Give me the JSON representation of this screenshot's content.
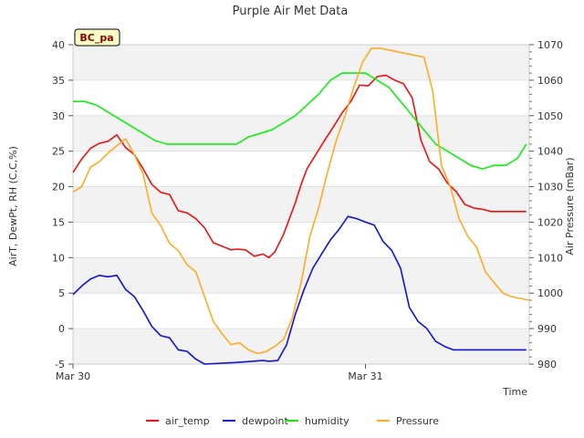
{
  "chart_data": {
    "type": "line",
    "title": "Purple Air Met Data",
    "badge": "BC_pa",
    "xlabel": "Time",
    "ylabel_left": "AirT, DewPt, RH (C,C,%)",
    "ylabel_right": "Air Pressure (mBar)",
    "x_ticks": [
      {
        "x": 0,
        "label": "Mar 30"
      },
      {
        "x": 1,
        "label": "Mar 31"
      }
    ],
    "xlim": [
      0,
      1.56
    ],
    "ylim_left": [
      -5,
      40
    ],
    "ylim_right": [
      980,
      1070
    ],
    "y_ticks_left": [
      -5,
      0,
      5,
      10,
      15,
      20,
      25,
      30,
      35,
      40
    ],
    "y_ticks_right": [
      980,
      990,
      1000,
      1010,
      1020,
      1030,
      1040,
      1050,
      1060,
      1070
    ],
    "grid": true,
    "legend_position": "bottom",
    "series": [
      {
        "name": "air_temp",
        "axis": "left",
        "color": "#ee1111",
        "x": [
          0,
          0.03,
          0.06,
          0.09,
          0.12,
          0.15,
          0.18,
          0.21,
          0.24,
          0.27,
          0.3,
          0.33,
          0.36,
          0.39,
          0.42,
          0.45,
          0.48,
          0.51,
          0.54,
          0.56,
          0.59,
          0.62,
          0.65,
          0.67,
          0.69,
          0.72,
          0.74,
          0.76,
          0.78,
          0.8,
          0.83,
          0.86,
          0.89,
          0.92,
          0.95,
          0.98,
          1.01,
          1.04,
          1.07,
          1.1,
          1.13,
          1.16,
          1.19,
          1.22,
          1.25,
          1.28,
          1.31,
          1.34,
          1.37,
          1.4,
          1.43,
          1.46,
          1.49,
          1.52,
          1.55
        ],
        "values": [
          22.0,
          23.9,
          25.4,
          26.1,
          26.4,
          27.3,
          25.5,
          24.5,
          22.5,
          20.3,
          19.2,
          18.9,
          16.6,
          16.3,
          15.5,
          14.2,
          12.1,
          11.6,
          11.1,
          11.2,
          11.1,
          10.2,
          10.5,
          10.0,
          10.8,
          13.3,
          15.5,
          17.7,
          20.3,
          22.5,
          24.5,
          26.5,
          28.4,
          30.4,
          32.0,
          34.3,
          34.2,
          35.5,
          35.7,
          35.0,
          34.5,
          32.5,
          26.5,
          23.5,
          22.5,
          20.5,
          19.3,
          17.5,
          17.0,
          16.8,
          16.5,
          16.5,
          16.5,
          16.5,
          16.5
        ]
      },
      {
        "name": "dewpoint",
        "axis": "left",
        "color": "#1111dd",
        "x": [
          0,
          0.03,
          0.06,
          0.09,
          0.12,
          0.15,
          0.18,
          0.21,
          0.24,
          0.27,
          0.3,
          0.33,
          0.36,
          0.39,
          0.42,
          0.45,
          0.55,
          0.65,
          0.67,
          0.7,
          0.73,
          0.76,
          0.79,
          0.82,
          0.85,
          0.88,
          0.91,
          0.94,
          0.97,
          1.0,
          1.03,
          1.06,
          1.09,
          1.12,
          1.15,
          1.18,
          1.21,
          1.24,
          1.27,
          1.3,
          1.33,
          1.36,
          1.39,
          1.42,
          1.45,
          1.48,
          1.51,
          1.55
        ],
        "values": [
          4.8,
          6.0,
          7.0,
          7.5,
          7.3,
          7.5,
          5.5,
          4.5,
          2.5,
          0.3,
          -1.0,
          -1.3,
          -3.0,
          -3.2,
          -4.3,
          -5.0,
          -4.8,
          -4.5,
          -4.6,
          -4.5,
          -2.3,
          2.0,
          5.5,
          8.5,
          10.5,
          12.5,
          14.0,
          15.8,
          15.5,
          15.0,
          14.6,
          12.3,
          11.0,
          8.5,
          3.0,
          1.0,
          0.0,
          -1.8,
          -2.5,
          -3.0,
          -3.0,
          -3.0,
          -3.0,
          -3.0,
          -3.0,
          -3.0,
          -3.0,
          -3.0
        ]
      },
      {
        "name": "humidity",
        "axis": "left",
        "color": "#11ee11",
        "x": [
          0,
          0.04,
          0.08,
          0.12,
          0.16,
          0.2,
          0.24,
          0.28,
          0.32,
          0.36,
          0.4,
          0.44,
          0.48,
          0.52,
          0.56,
          0.6,
          0.64,
          0.68,
          0.72,
          0.76,
          0.8,
          0.84,
          0.88,
          0.92,
          0.96,
          1.0,
          1.04,
          1.08,
          1.12,
          1.16,
          1.2,
          1.24,
          1.28,
          1.32,
          1.36,
          1.4,
          1.44,
          1.48,
          1.52,
          1.55
        ],
        "values": [
          32.0,
          32.0,
          31.5,
          30.5,
          29.5,
          28.5,
          27.5,
          26.5,
          26.0,
          26.0,
          26.0,
          26.0,
          26.0,
          26.0,
          26.0,
          27.0,
          27.5,
          28.0,
          29.0,
          30.0,
          31.5,
          33.0,
          35.0,
          36.0,
          36.0,
          36.0,
          35.0,
          34.0,
          32.0,
          30.0,
          28.0,
          26.0,
          25.0,
          24.0,
          23.0,
          22.5,
          23.0,
          23.0,
          24.0,
          26.0
        ]
      },
      {
        "name": "Pressure",
        "axis": "right",
        "color": "#ffaa22",
        "x": [
          0,
          0.03,
          0.06,
          0.09,
          0.12,
          0.15,
          0.18,
          0.21,
          0.24,
          0.27,
          0.3,
          0.33,
          0.36,
          0.39,
          0.42,
          0.45,
          0.48,
          0.51,
          0.54,
          0.57,
          0.6,
          0.63,
          0.66,
          0.69,
          0.72,
          0.75,
          0.78,
          0.81,
          0.84,
          0.87,
          0.9,
          0.93,
          0.96,
          0.99,
          1.02,
          1.05,
          1.08,
          1.11,
          1.14,
          1.17,
          1.2,
          1.23,
          1.26,
          1.29,
          1.32,
          1.35,
          1.38,
          1.41,
          1.44,
          1.47,
          1.5,
          1.53,
          1.56
        ],
        "values": [
          1028.5,
          1030.0,
          1035.5,
          1037.0,
          1039.5,
          1041.5,
          1043.5,
          1039.0,
          1033.5,
          1022.5,
          1019.0,
          1014.0,
          1012.0,
          1008.0,
          1006.0,
          999.0,
          992.0,
          988.5,
          985.5,
          986.0,
          984.0,
          983.0,
          983.5,
          985.0,
          987.0,
          993.0,
          1003.0,
          1016.0,
          1024.0,
          1034.0,
          1043.0,
          1050.0,
          1058.0,
          1065.0,
          1069.0,
          1069.0,
          1068.5,
          1068.0,
          1067.5,
          1067.0,
          1066.5,
          1057.0,
          1036.0,
          1030.0,
          1021.0,
          1016.0,
          1013.0,
          1006.0,
          1003.0,
          1000.0,
          999.0,
          998.5,
          998.0
        ]
      }
    ]
  }
}
